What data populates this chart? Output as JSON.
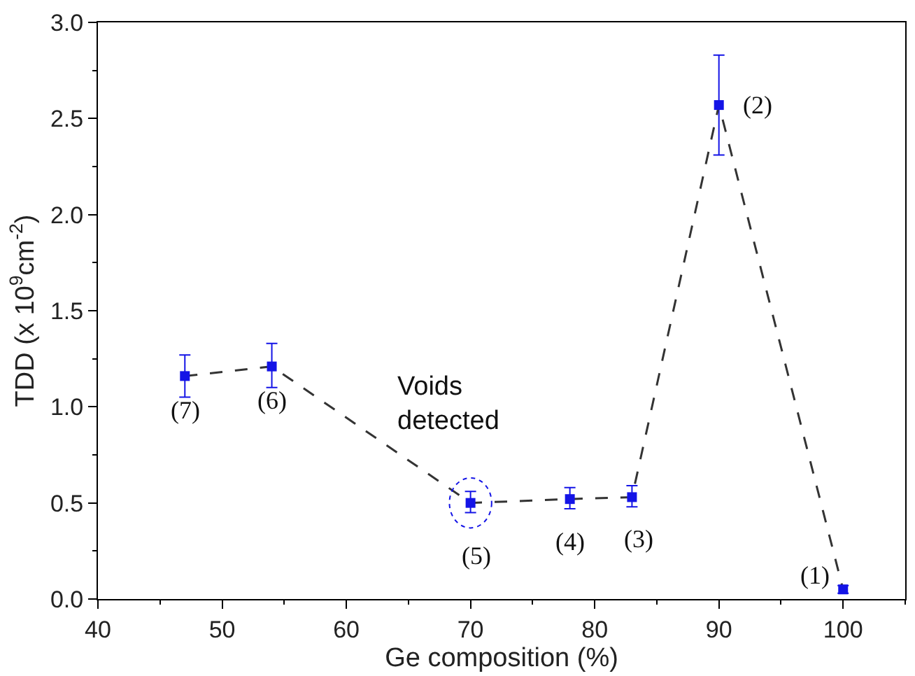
{
  "chart_data": {
    "type": "line",
    "xlabel": "Ge composition (%)",
    "ylabel": "TDD (x 10$^{9}$cm$^{-2}$)",
    "x": [
      47,
      54,
      70,
      78,
      83,
      90,
      100
    ],
    "series": [
      {
        "color": "#1414e6",
        "values": [
          1.16,
          1.21,
          0.5,
          0.52,
          0.53,
          2.57,
          0.05
        ],
        "errors": [
          [
            1.05,
            1.27
          ],
          [
            1.1,
            1.33
          ],
          [
            0.45,
            0.56
          ],
          [
            0.47,
            0.58
          ],
          [
            0.48,
            0.59
          ],
          [
            2.31,
            2.83
          ],
          [
            0.03,
            0.07
          ]
        ]
      }
    ],
    "marker": "square",
    "line_style": "dashed",
    "xlim": [
      40,
      105
    ],
    "xticks": [
      40,
      50,
      60,
      70,
      80,
      90,
      100
    ],
    "ylim": [
      0,
      3
    ],
    "yticks": [
      {
        "value": 0,
        "label": "0.0"
      },
      0.5,
      {
        "value": 1,
        "label": "1.0"
      },
      1.5,
      {
        "value": 2,
        "label": "2.0"
      },
      2.5,
      {
        "value": 3,
        "label": "3.0"
      }
    ],
    "annotations": [
      {
        "text": "(7)",
        "x": 47,
        "y": 1.16
      },
      {
        "text": "(6)",
        "x": 54,
        "y": 1.21
      },
      {
        "text": "(5)",
        "x": 70,
        "y": 0.5
      },
      {
        "text": "(4)",
        "x": 78,
        "y": 0.52
      },
      {
        "text": "(3)",
        "x": 83,
        "y": 0.53
      },
      {
        "text": "(2)",
        "x": 90,
        "y": 2.57
      },
      {
        "text": "(1)",
        "x": 100,
        "y": 0.05
      },
      {
        "text": "Voids detected",
        "x": 70,
        "y": 0.5
      }
    ]
  }
}
